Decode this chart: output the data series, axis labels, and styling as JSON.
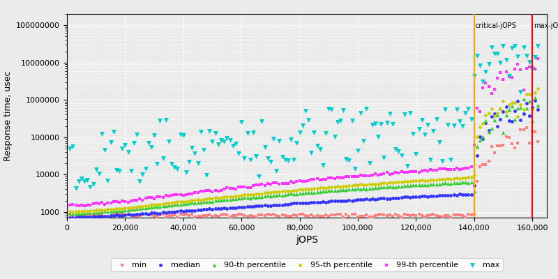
{
  "xlabel": "jOPS",
  "ylabel": "Response time, usec",
  "xlim": [
    0,
    165000
  ],
  "ylim_log": [
    700,
    200000000
  ],
  "x_ticks": [
    0,
    20000,
    40000,
    60000,
    80000,
    100000,
    120000,
    140000,
    160000
  ],
  "x_tick_labels": [
    "0",
    "20,000",
    "40,000",
    "60,000",
    "80,000",
    "100,000",
    "120,000",
    "140,000",
    "160,000"
  ],
  "y_tick_vals": [
    100000000,
    10000000,
    1000000,
    100000,
    10000,
    1000
  ],
  "y_tick_labels": [
    "100000000",
    "10000000",
    "1000000",
    "100000",
    "10000",
    "1000"
  ],
  "critical_jops": 140000,
  "max_jops": 160000,
  "critical_color": "#FFA500",
  "max_color": "#FF0000",
  "bg_color": "#EBEBEB",
  "grid_color": "#FFFFFF",
  "series": {
    "min": {
      "color": "#FF8080",
      "marker": "s",
      "ms": 2.5,
      "label": "min"
    },
    "median": {
      "color": "#3333FF",
      "marker": "o",
      "ms": 3.5,
      "label": "median"
    },
    "p90": {
      "color": "#33CC33",
      "marker": "^",
      "ms": 4,
      "label": "90-th percentile"
    },
    "p95": {
      "color": "#CCCC00",
      "marker": "D",
      "ms": 3,
      "label": "95-th percentile"
    },
    "p99": {
      "color": "#FF33FF",
      "marker": "s",
      "ms": 3,
      "label": "99-th percentile"
    },
    "max": {
      "color": "#00CCCC",
      "marker": "v",
      "ms": 5,
      "label": "max"
    }
  }
}
